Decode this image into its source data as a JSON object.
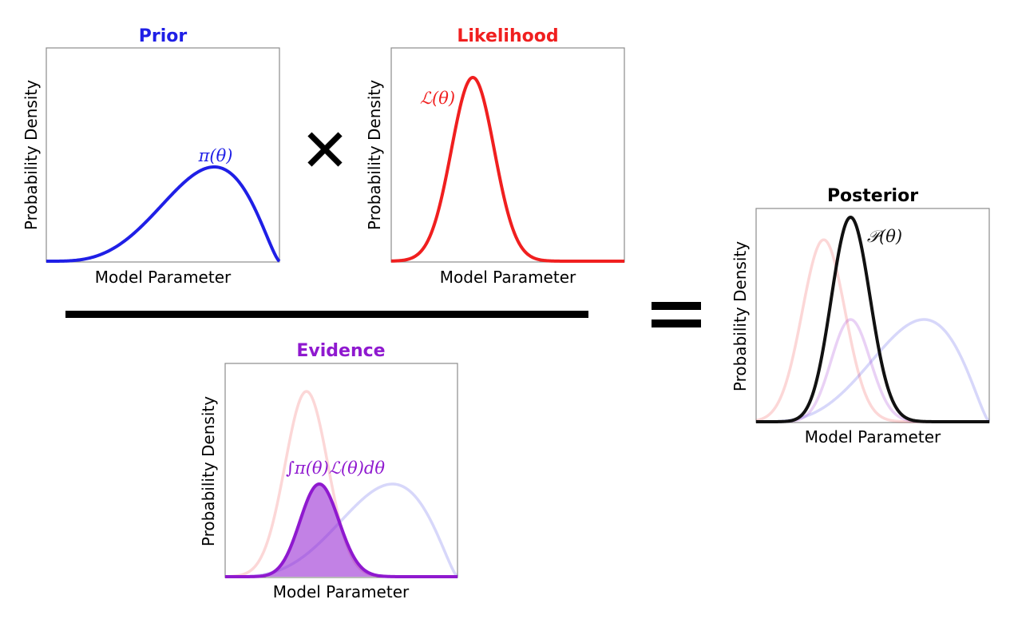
{
  "colors": {
    "prior": "#1f1fe6",
    "likelihood": "#f01f1f",
    "evidence": "#8f19cf",
    "posterior": "#111111",
    "operator": "#000000"
  },
  "operators": {
    "multiply": "✕",
    "equals": "="
  },
  "chart_data": [
    {
      "id": "prior",
      "type": "line",
      "title": "Prior",
      "xlabel": "Model Parameter",
      "ylabel": "Probability Density",
      "grid": false,
      "series": [
        {
          "name": "π(θ)",
          "curve": "prior",
          "peak_x": 0.72,
          "peak_density": 0.5
        }
      ]
    },
    {
      "id": "likelihood",
      "type": "line",
      "title": "Likelihood",
      "xlabel": "Model Parameter",
      "ylabel": "Probability Density",
      "grid": false,
      "series": [
        {
          "name": "ℒ(θ)",
          "curve": "likelihood",
          "peak_x": 0.35,
          "peak_density": 1.0
        }
      ]
    },
    {
      "id": "evidence",
      "type": "area",
      "title": "Evidence",
      "xlabel": "Model Parameter",
      "ylabel": "Probability Density",
      "grid": false,
      "series": [
        {
          "name": "",
          "curve": "likelihood",
          "faded": true
        },
        {
          "name": "",
          "curve": "prior",
          "faded": true
        },
        {
          "name": "∫π(θ)ℒ(θ)dθ",
          "curve": "product",
          "filled": true,
          "peak_density": 0.5
        }
      ]
    },
    {
      "id": "posterior",
      "type": "line",
      "title": "Posterior",
      "xlabel": "Model Parameter",
      "ylabel": "Probability Density",
      "grid": false,
      "series": [
        {
          "name": "",
          "curve": "likelihood",
          "faded": true
        },
        {
          "name": "",
          "curve": "prior",
          "faded": true
        },
        {
          "name": "",
          "curve": "product",
          "faded": true
        },
        {
          "name": "𝒫(θ)",
          "curve": "posterior",
          "peak_density": 1.0
        }
      ]
    }
  ]
}
